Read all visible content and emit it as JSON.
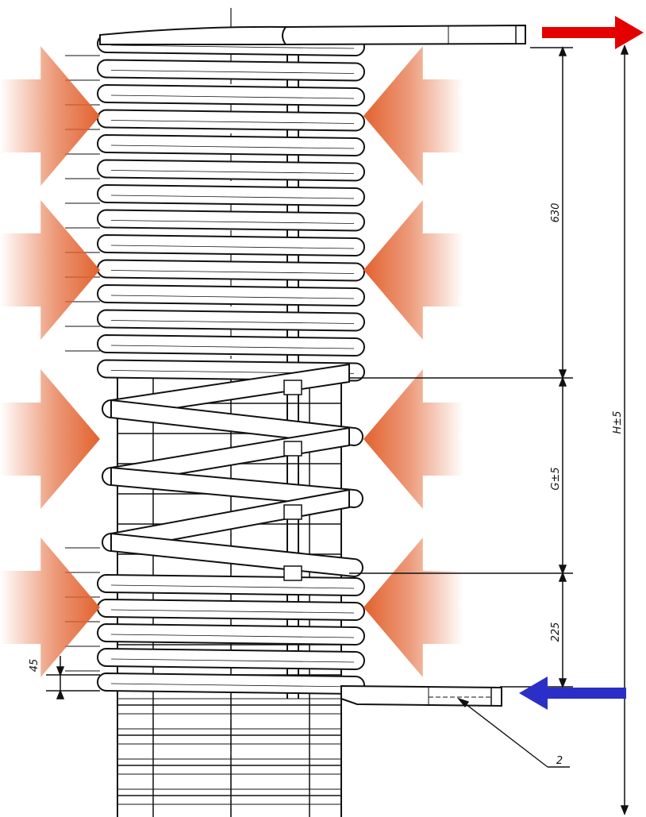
{
  "dimensions": {
    "top_section": "630",
    "middle_section": "G±5",
    "bottom_section": "225",
    "total_height": "H±5",
    "end_offset": "45"
  },
  "callouts": [
    {
      "label": "2"
    }
  ],
  "flow": {
    "outlet_arrow_color": "#e50000",
    "inlet_arrow_color": "#2b2fc8"
  },
  "heat_arrow_color": "#e2622f",
  "icons": {
    "outlet": "arrow-right-icon",
    "inlet": "arrow-left-icon",
    "heat": "heat-flux-arrow-icon"
  }
}
